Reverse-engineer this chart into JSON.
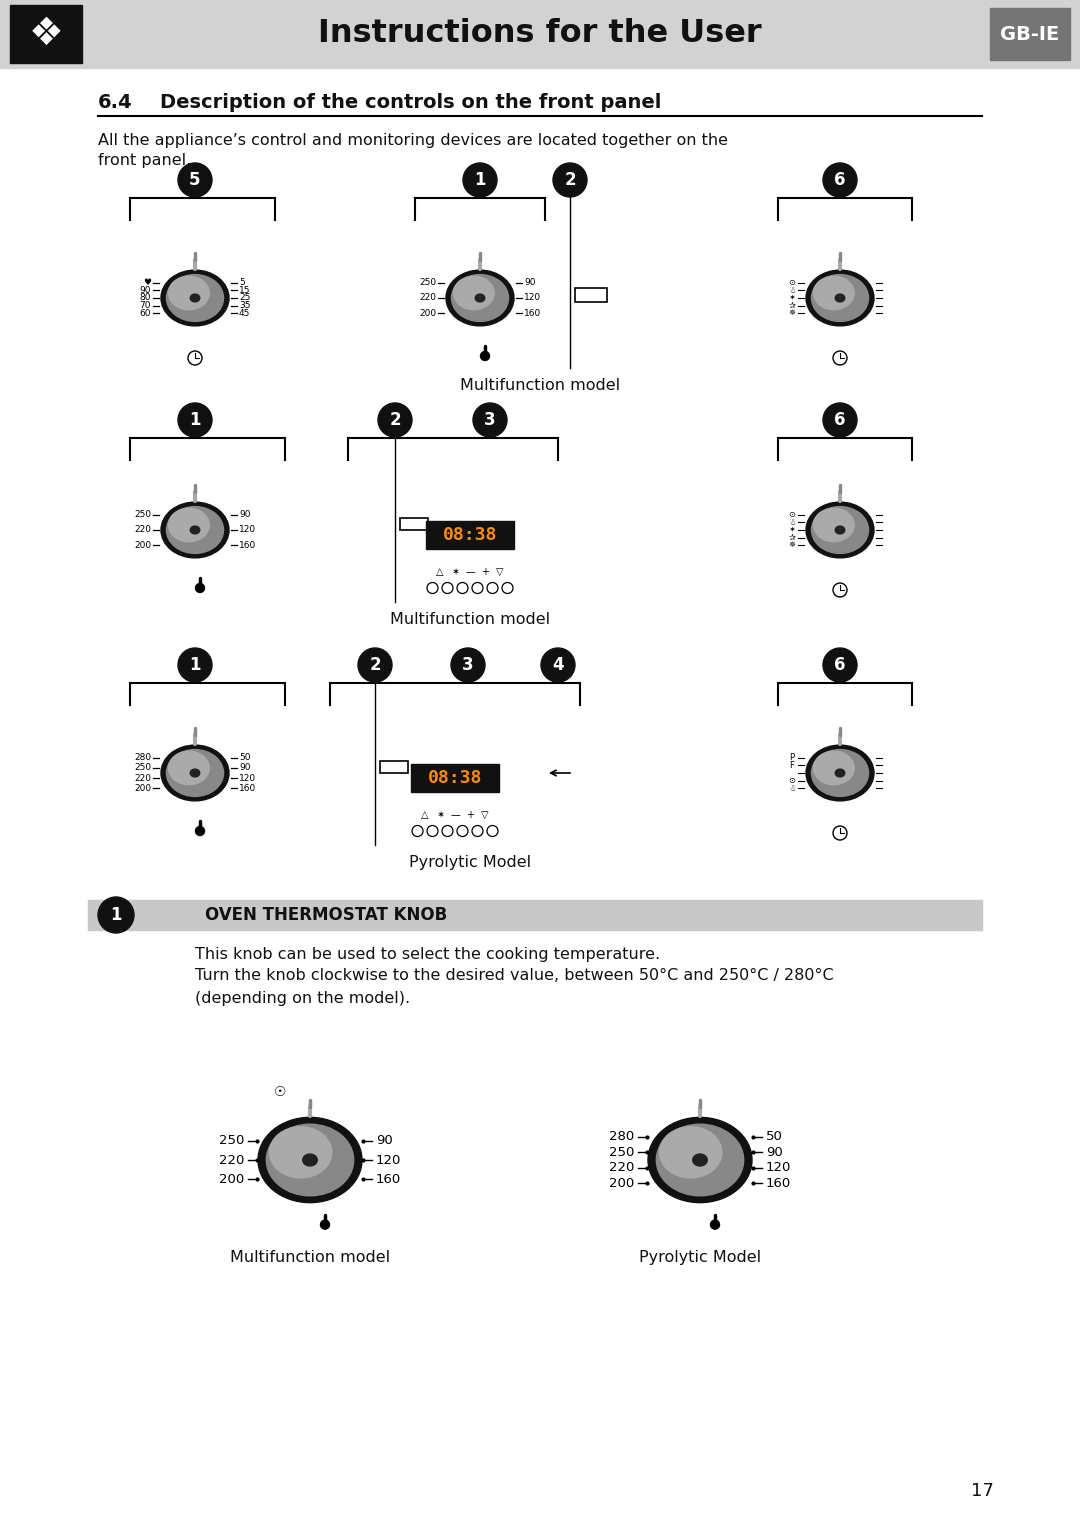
{
  "title": "Instructions for the User",
  "gb_ie_label": "GB-IE",
  "section_num": "6.4",
  "section_title": "Description of the controls on the front panel",
  "intro_line1": "All the appliance’s control and monitoring devices are located together on the",
  "intro_line2": "front panel.",
  "multifunction_label": "Multifunction model",
  "pyrolytic_label": "Pyrolytic Model",
  "oven_thermostat_header": "OVEN THERMOSTAT KNOB",
  "oven_text1": "This knob can be used to select the cooking temperature.",
  "oven_text2": "Turn the knob clockwise to the desired value, between 50°C and 250°C / 280°C",
  "oven_text3": "(depending on the model).",
  "page_number": "17",
  "header_bg": "#d2d2d2",
  "logo_bg": "#111111",
  "gbie_bg": "#757575",
  "ots_bar_bg": "#c8c8c8",
  "text_color": "#111111",
  "white": "#ffffff"
}
